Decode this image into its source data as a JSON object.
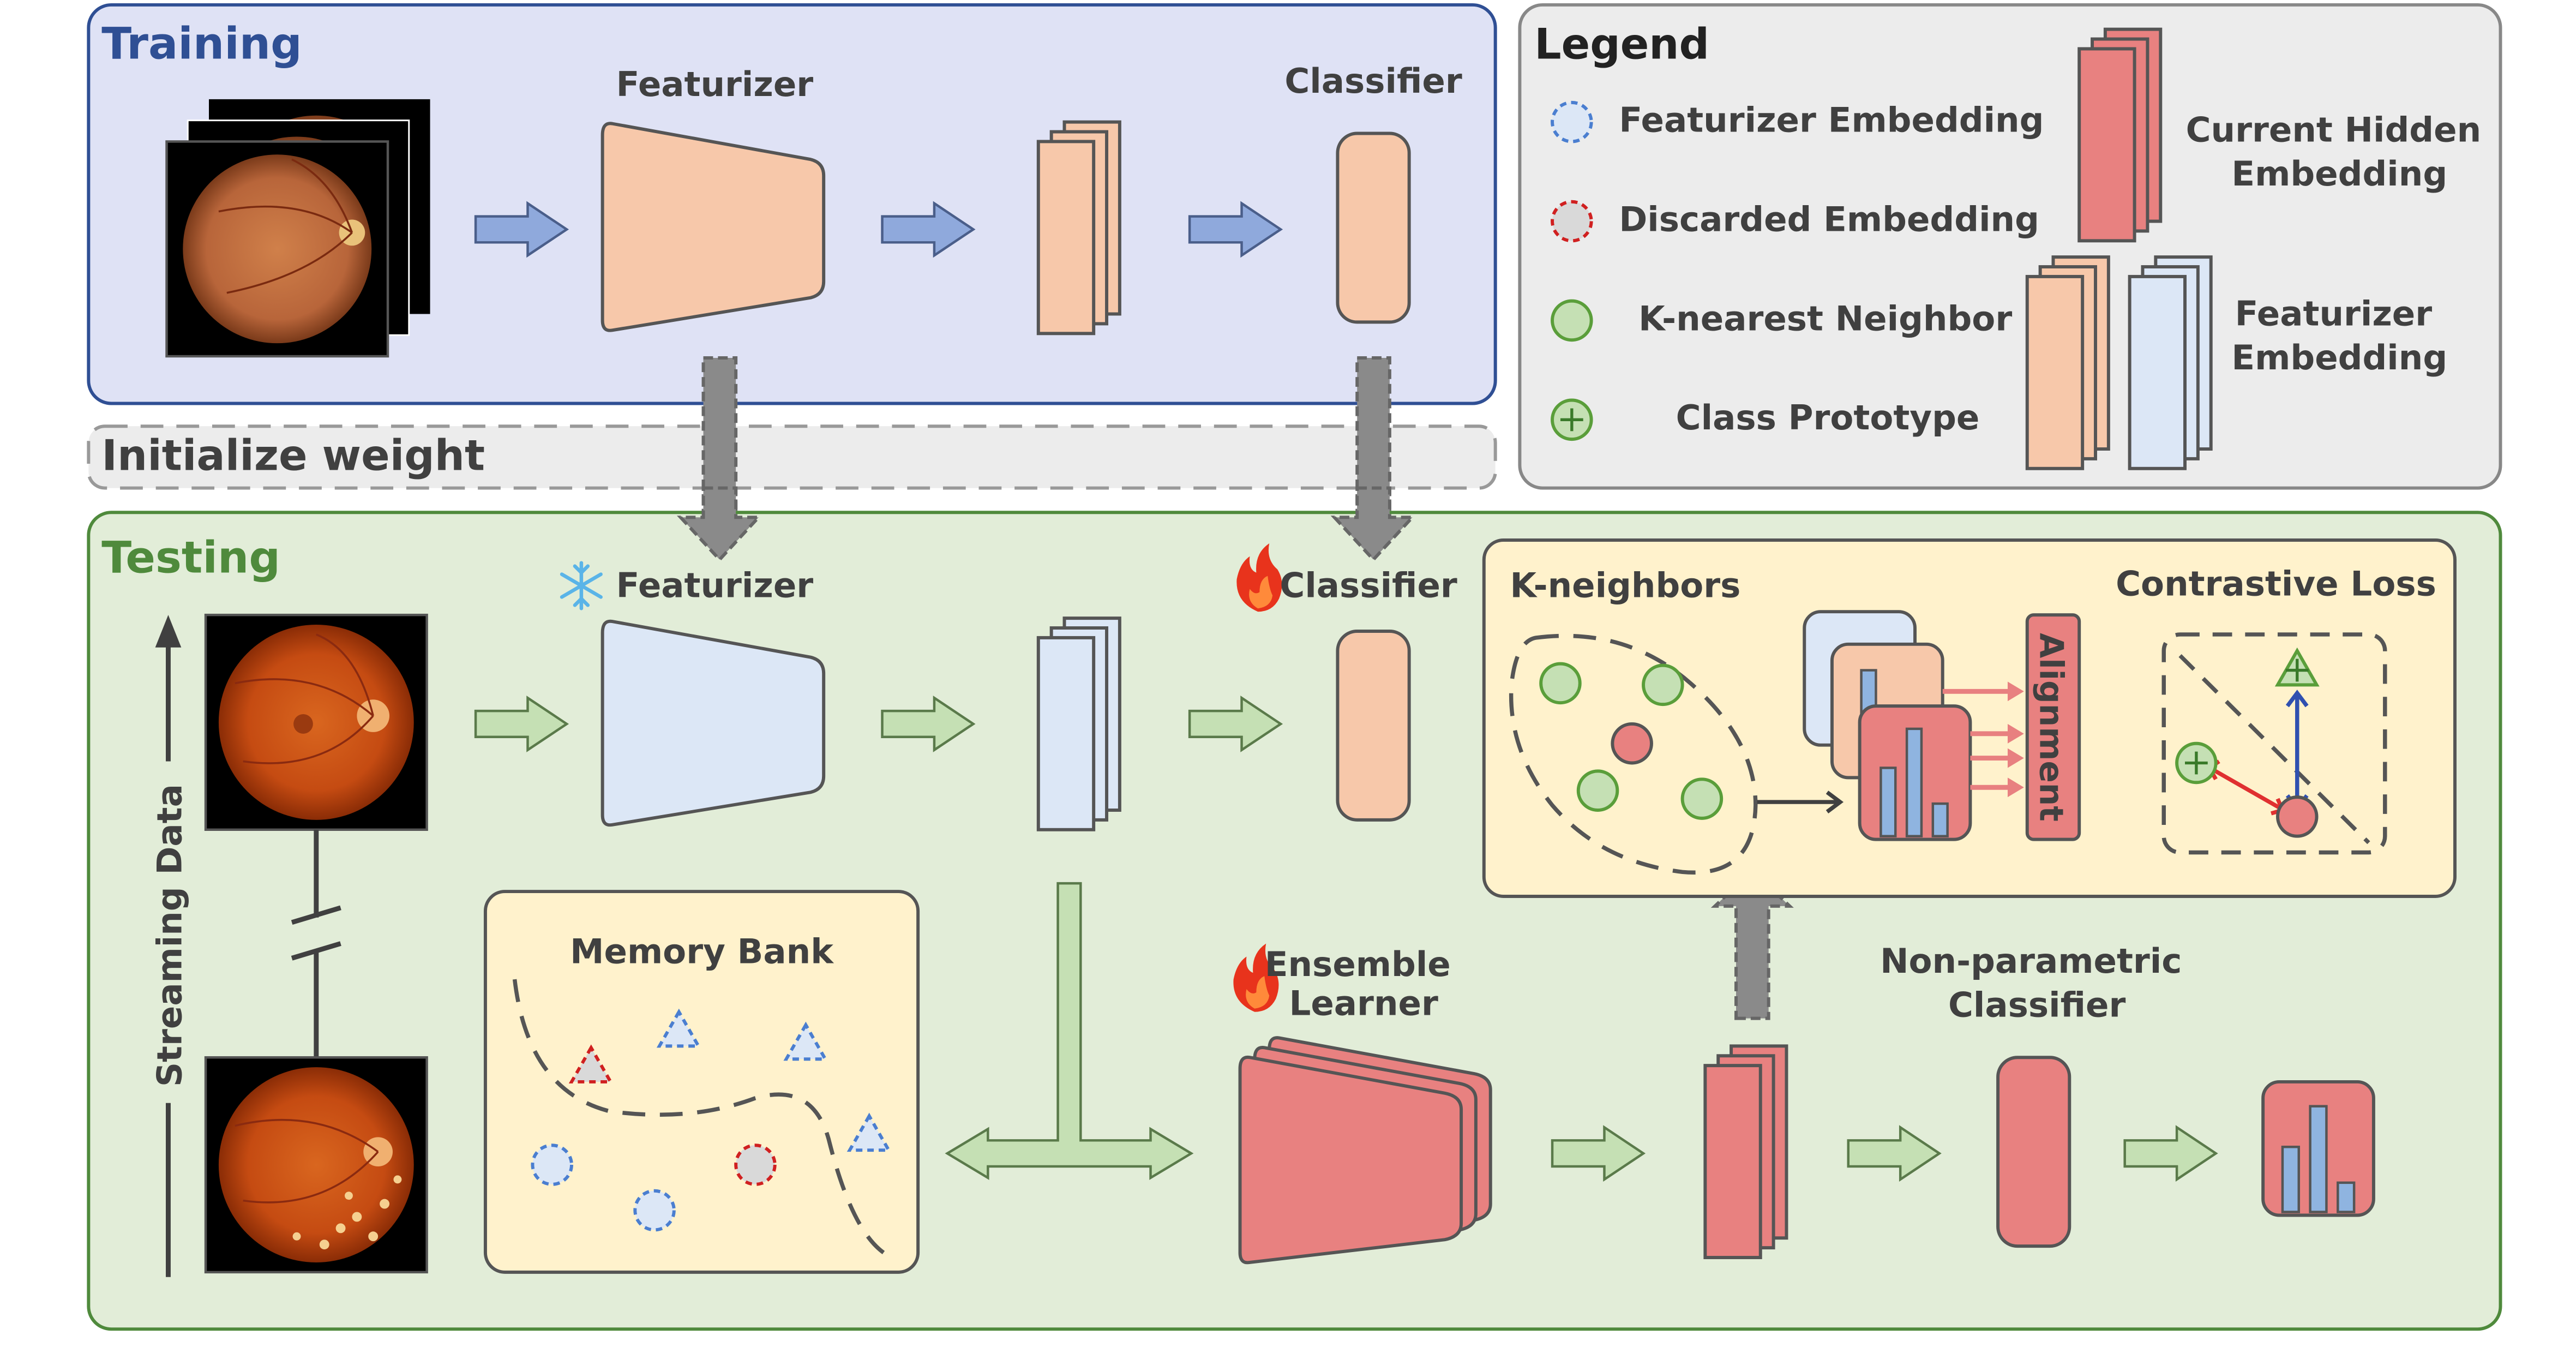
{
  "training": {
    "title": "Training",
    "featurizer_label": "Featurizer",
    "classifier_label": "Classifier"
  },
  "init": {
    "label": "Initialize weight"
  },
  "legend": {
    "title": "Legend",
    "items": [
      {
        "label": "Featurizer Embedding"
      },
      {
        "label": "Discarded Embedding"
      },
      {
        "label": "K-nearest Neighbor"
      },
      {
        "label": "Class Prototype"
      }
    ],
    "current_hidden": [
      "Current Hidden",
      "Embedding"
    ],
    "featurizer_emb": [
      "Featurizer",
      "Embedding"
    ]
  },
  "testing": {
    "title": "Testing",
    "featurizer_label": "Featurizer",
    "classifier_label": "Classifier",
    "streaming_label": "Streaming Data",
    "memory_bank_label": "Memory Bank",
    "ensemble_label": [
      "Ensemble",
      "Learner"
    ],
    "nonparam_label": [
      "Non-parametric",
      "Classifier"
    ],
    "kneighbors_label": "K-neighbors",
    "contrastive_label": "Contrastive Loss",
    "alignment_label": "Alignment"
  },
  "colors": {
    "training_bg": "#dfe2f5",
    "training_border": "#2f4f94",
    "training_title": "#2f4f94",
    "testing_bg": "#e2edd8",
    "testing_border": "#4f8a3c",
    "testing_title": "#4f8a3c",
    "orange": "#f7c8aa",
    "blue_emb": "#dce7f6",
    "red": "#e88180",
    "yellow_panel": "#fff2cc",
    "legend_bg": "#ececec",
    "arrow_blue": "#8fa9dc",
    "arrow_green": "#c5e0b4"
  }
}
